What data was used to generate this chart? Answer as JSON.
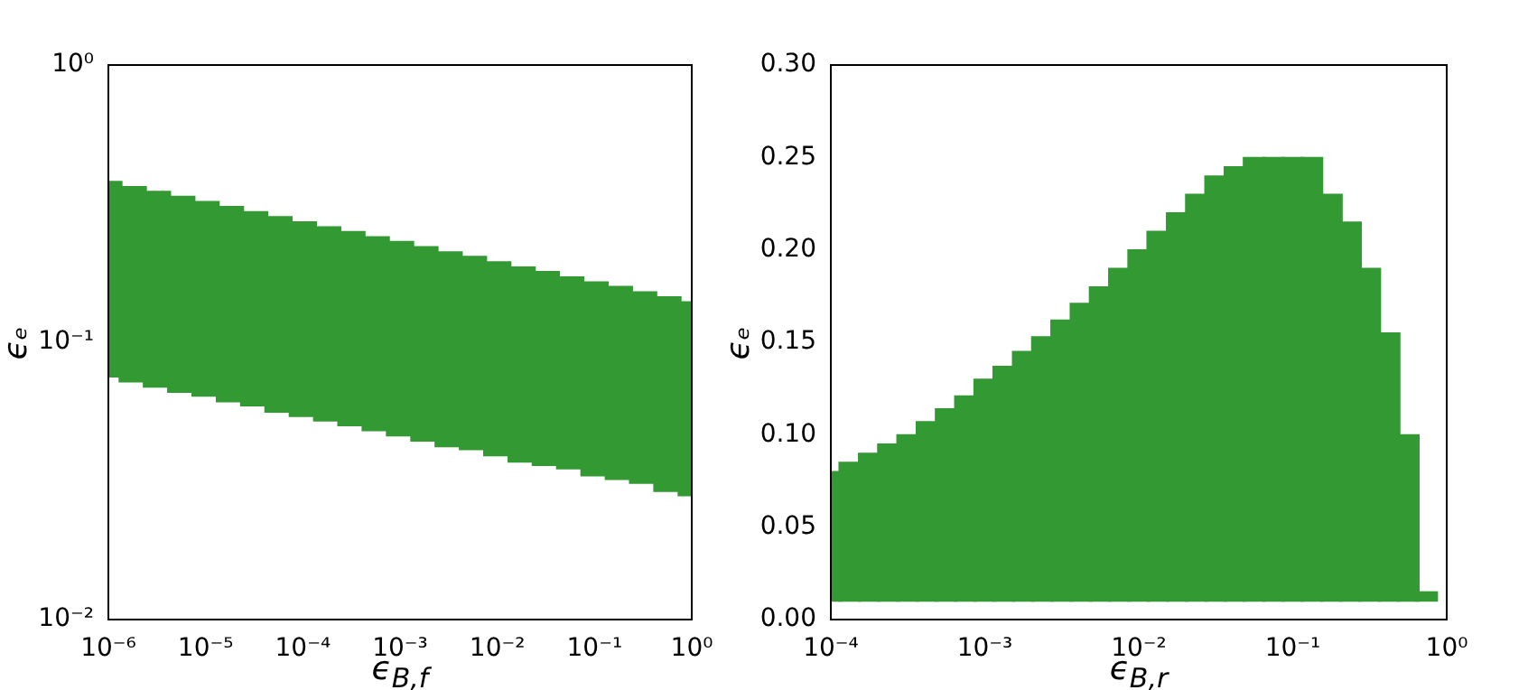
{
  "chart_data": [
    {
      "type": "bar",
      "xlabel": "ϵ$_{B,f}$",
      "ylabel": "ϵₑ",
      "log": "xy",
      "color": "#339933",
      "x": [
        1e-06,
        1.78e-06,
        3.16e-06,
        5.62e-06,
        1e-05,
        1.78e-05,
        3.16e-05,
        5.62e-05,
        0.0001,
        0.000178,
        0.000316,
        0.000562,
        0.001,
        0.00178,
        0.00316,
        0.00562,
        0.01,
        0.0178,
        0.0316,
        0.0562,
        0.1,
        0.178,
        0.316,
        0.562,
        1
      ],
      "base": [
        0.075,
        0.072,
        0.069,
        0.066,
        0.064,
        0.061,
        0.059,
        0.056,
        0.054,
        0.052,
        0.05,
        0.048,
        0.046,
        0.044,
        0.042,
        0.041,
        0.039,
        0.037,
        0.036,
        0.035,
        0.033,
        0.032,
        0.031,
        0.029,
        0.028
      ],
      "values": [
        0.305,
        0.292,
        0.281,
        0.27,
        0.258,
        0.248,
        0.237,
        0.228,
        0.218,
        0.209,
        0.201,
        0.192,
        0.185,
        0.177,
        0.17,
        0.163,
        0.156,
        0.15,
        0.144,
        0.137,
        0.132,
        0.127,
        0.121,
        0.117,
        0.112
      ],
      "xlim": [
        1e-06,
        1
      ],
      "ylim": [
        0.01,
        1
      ],
      "xticks": [
        {
          "value": 1e-06,
          "label": "10⁻⁶"
        },
        {
          "value": 1e-05,
          "label": "10⁻⁵"
        },
        {
          "value": 0.0001,
          "label": "10⁻⁴"
        },
        {
          "value": 0.001,
          "label": "10⁻³"
        },
        {
          "value": 0.01,
          "label": "10⁻²"
        },
        {
          "value": 0.1,
          "label": "10⁻¹"
        },
        {
          "value": 1,
          "label": "10⁰"
        }
      ],
      "yticks": [
        {
          "value": 0.01,
          "label": "10⁻²"
        },
        {
          "value": 0.1,
          "label": "10⁻¹"
        },
        {
          "value": 1,
          "label": "10⁰"
        }
      ]
    },
    {
      "type": "bar",
      "xlabel": "ϵ$_{B,r}$",
      "ylabel": "ϵₑ",
      "log": "x",
      "color": "#339933",
      "x": [
        0.0001,
        0.000133,
        0.000178,
        0.000237,
        0.000316,
        0.000422,
        0.000562,
        0.00075,
        0.001,
        0.00133,
        0.00178,
        0.00237,
        0.00316,
        0.00422,
        0.00562,
        0.0075,
        0.01,
        0.0133,
        0.0178,
        0.0237,
        0.0316,
        0.0422,
        0.0562,
        0.075,
        0.1,
        0.133,
        0.178,
        0.237,
        0.316,
        0.422,
        0.562,
        0.74
      ],
      "base": [
        0.01,
        0.01,
        0.01,
        0.01,
        0.01,
        0.01,
        0.01,
        0.01,
        0.01,
        0.01,
        0.01,
        0.01,
        0.01,
        0.01,
        0.01,
        0.01,
        0.01,
        0.01,
        0.01,
        0.01,
        0.01,
        0.01,
        0.01,
        0.01,
        0.01,
        0.01,
        0.01,
        0.01,
        0.01,
        0.01,
        0.01,
        0.01
      ],
      "values": [
        0.07,
        0.075,
        0.08,
        0.085,
        0.09,
        0.097,
        0.104,
        0.111,
        0.12,
        0.127,
        0.135,
        0.143,
        0.152,
        0.161,
        0.17,
        0.18,
        0.19,
        0.2,
        0.21,
        0.22,
        0.23,
        0.235,
        0.24,
        0.24,
        0.24,
        0.24,
        0.22,
        0.205,
        0.18,
        0.145,
        0.09,
        0.005
      ],
      "xlim": [
        0.0001,
        1
      ],
      "ylim": [
        0,
        0.3
      ],
      "xticks": [
        {
          "value": 0.0001,
          "label": "10⁻⁴"
        },
        {
          "value": 0.001,
          "label": "10⁻³"
        },
        {
          "value": 0.01,
          "label": "10⁻²"
        },
        {
          "value": 0.1,
          "label": "10⁻¹"
        },
        {
          "value": 1,
          "label": "10⁰"
        }
      ],
      "yticks": [
        {
          "value": 0,
          "label": "0.00"
        },
        {
          "value": 0.05,
          "label": "0.05"
        },
        {
          "value": 0.1,
          "label": "0.10"
        },
        {
          "value": 0.15,
          "label": "0.15"
        },
        {
          "value": 0.2,
          "label": "0.20"
        },
        {
          "value": 0.25,
          "label": "0.25"
        },
        {
          "value": 0.3,
          "label": "0.30"
        }
      ]
    }
  ]
}
